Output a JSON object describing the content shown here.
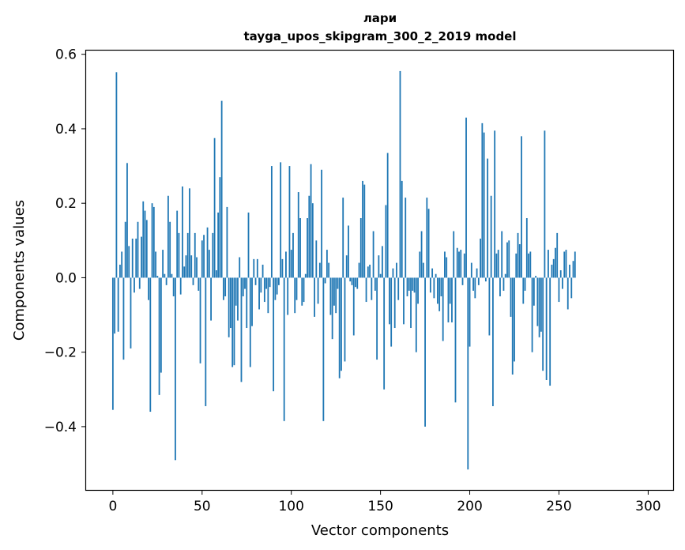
{
  "chart_data": {
    "type": "bar",
    "title": "лари",
    "subtitle": "tayga_upos_skipgram_300_2_2019 model",
    "xlabel": "Vector components",
    "ylabel": "Components values",
    "xlim": [
      -15,
      314
    ],
    "ylim": [
      -0.57,
      0.61
    ],
    "xticks": [
      0,
      50,
      100,
      150,
      200,
      250,
      300
    ],
    "yticks": [
      -0.4,
      -0.2,
      0.0,
      0.2,
      0.4,
      0.6
    ],
    "ytick_labels": [
      "−0.4",
      "−0.2",
      "0.0",
      "0.2",
      "0.4",
      "0.6"
    ],
    "bar_color": "#1f77b4",
    "grid": false,
    "x_start": 0,
    "values": [
      -0.355,
      -0.15,
      0.552,
      -0.145,
      0.035,
      0.07,
      -0.22,
      0.15,
      0.308,
      0.085,
      -0.19,
      0.105,
      -0.04,
      0.105,
      0.15,
      -0.03,
      0.11,
      0.205,
      0.18,
      0.155,
      -0.06,
      -0.36,
      0.2,
      0.19,
      0.07,
      0.005,
      -0.315,
      -0.255,
      0.075,
      0.01,
      -0.02,
      0.22,
      0.15,
      0.01,
      -0.05,
      -0.49,
      0.18,
      0.12,
      -0.045,
      0.245,
      0.03,
      0.06,
      0.12,
      0.24,
      0.06,
      -0.02,
      0.12,
      0.055,
      -0.035,
      -0.23,
      0.1,
      0.115,
      -0.345,
      0.135,
      0.075,
      -0.115,
      0.12,
      0.375,
      0.02,
      0.175,
      0.27,
      0.475,
      -0.06,
      -0.05,
      0.19,
      -0.16,
      -0.135,
      -0.24,
      -0.235,
      -0.075,
      -0.115,
      0.055,
      -0.28,
      -0.05,
      -0.03,
      -0.135,
      0.175,
      -0.24,
      -0.13,
      0.05,
      -0.02,
      0.05,
      -0.085,
      -0.04,
      0.035,
      -0.065,
      -0.03,
      -0.095,
      -0.025,
      0.3,
      -0.305,
      -0.06,
      -0.045,
      -0.02,
      0.31,
      0.05,
      -0.385,
      0.07,
      -0.1,
      0.3,
      0.075,
      0.12,
      -0.095,
      -0.06,
      0.23,
      0.16,
      -0.075,
      -0.065,
      0.01,
      0.16,
      0.22,
      0.305,
      0.2,
      -0.105,
      0.1,
      -0.07,
      0.04,
      0.29,
      -0.385,
      -0.015,
      0.075,
      0.04,
      -0.1,
      -0.165,
      -0.075,
      -0.095,
      -0.03,
      -0.27,
      -0.25,
      0.215,
      -0.225,
      0.06,
      0.14,
      -0.01,
      -0.02,
      -0.155,
      -0.025,
      -0.03,
      0.04,
      0.16,
      0.26,
      0.25,
      -0.065,
      0.03,
      0.035,
      -0.06,
      0.125,
      -0.035,
      -0.22,
      0.06,
      0.01,
      0.085,
      -0.3,
      0.195,
      0.335,
      -0.125,
      -0.185,
      0.025,
      -0.135,
      0.04,
      -0.06,
      0.555,
      0.26,
      -0.125,
      0.215,
      -0.05,
      -0.035,
      -0.135,
      -0.035,
      -0.04,
      -0.2,
      -0.07,
      0.07,
      0.125,
      0.04,
      -0.4,
      0.215,
      0.185,
      -0.04,
      0.025,
      -0.055,
      0.01,
      -0.07,
      -0.09,
      -0.05,
      -0.17,
      0.07,
      0.055,
      -0.12,
      -0.07,
      -0.12,
      0.125,
      -0.335,
      0.08,
      0.07,
      0.075,
      -0.02,
      0.065,
      0.43,
      -0.515,
      -0.185,
      0.04,
      -0.035,
      -0.055,
      0.025,
      -0.02,
      0.105,
      0.415,
      0.39,
      -0.01,
      0.32,
      -0.155,
      0.22,
      -0.345,
      0.395,
      0.065,
      0.075,
      -0.05,
      0.125,
      -0.035,
      0.01,
      0.095,
      0.1,
      -0.105,
      -0.26,
      -0.225,
      0.065,
      0.12,
      0.09,
      0.38,
      -0.07,
      -0.035,
      0.16,
      0.065,
      0.07,
      -0.2,
      -0.075,
      0.005,
      -0.13,
      -0.16,
      -0.145,
      -0.25,
      0.395,
      -0.275,
      0.075,
      -0.29,
      0.035,
      0.05,
      0.08,
      0.12,
      -0.065,
      0.02,
      -0.03,
      0.07,
      0.075,
      -0.085,
      0.035,
      -0.055,
      0.045,
      0.07
    ]
  }
}
